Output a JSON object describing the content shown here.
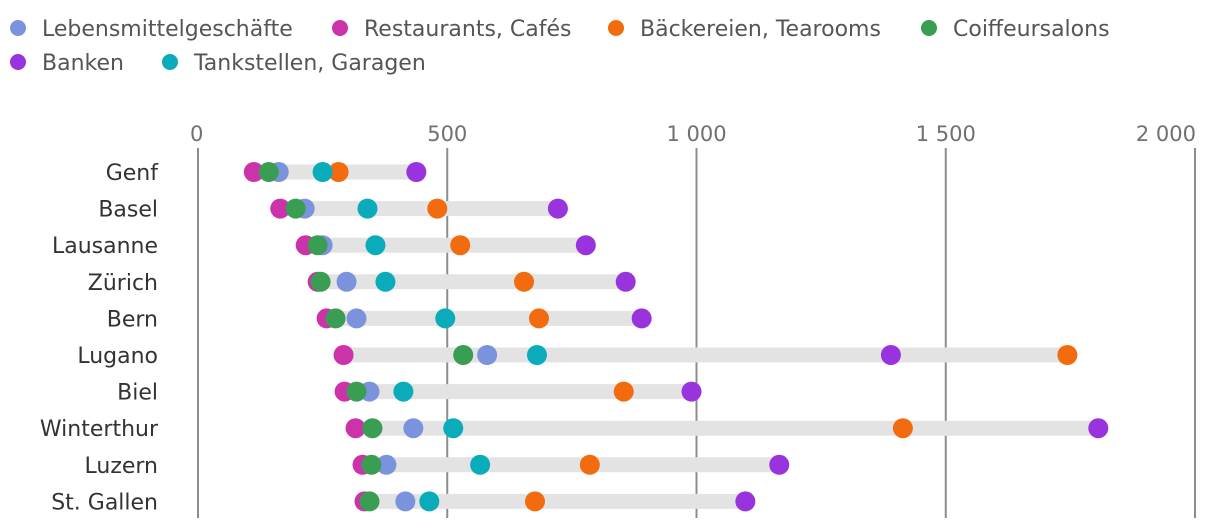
{
  "chart_data": {
    "type": "scatter",
    "subtype": "dot-plot",
    "title": "",
    "xlabel": "",
    "ylabel": "",
    "xlim": [
      0,
      2000
    ],
    "x_ticks": [
      0,
      500,
      1000,
      1500,
      2000
    ],
    "x_tick_labels": [
      "0",
      "500",
      "1 000",
      "1 500",
      "2 000"
    ],
    "legend_position": "top-left",
    "grid": true,
    "categories": [
      "Genf",
      "Basel",
      "Lausanne",
      "Zürich",
      "Bern",
      "Lugano",
      "Biel",
      "Winterthur",
      "Luzern",
      "St. Gallen"
    ],
    "series": [
      {
        "name": "Lebensmittelgeschäfte",
        "color": "#7b93dd",
        "values": [
          162,
          214,
          250,
          298,
          318,
          580,
          344,
          432,
          378,
          416
        ]
      },
      {
        "name": "Restaurants, Cafés",
        "color": "#cc33aa",
        "values": [
          112,
          165,
          216,
          240,
          258,
          292,
          294,
          316,
          330,
          334
        ]
      },
      {
        "name": "Bäckereien, Tearooms",
        "color": "#f26b0f",
        "values": [
          282,
          480,
          526,
          654,
          684,
          1744,
          854,
          1414,
          786,
          676
        ]
      },
      {
        "name": "Coiffeursalons",
        "color": "#3a9e52",
        "values": [
          142,
          196,
          240,
          246,
          276,
          532,
          318,
          350,
          348,
          344
        ]
      },
      {
        "name": "Banken",
        "color": "#9933dd",
        "values": [
          438,
          722,
          778,
          858,
          890,
          1390,
          990,
          1806,
          1166,
          1098
        ]
      },
      {
        "name": "Tankstellen, Garagen",
        "color": "#0aabbb",
        "values": [
          250,
          340,
          356,
          376,
          496,
          680,
          412,
          512,
          566,
          464
        ]
      }
    ]
  }
}
